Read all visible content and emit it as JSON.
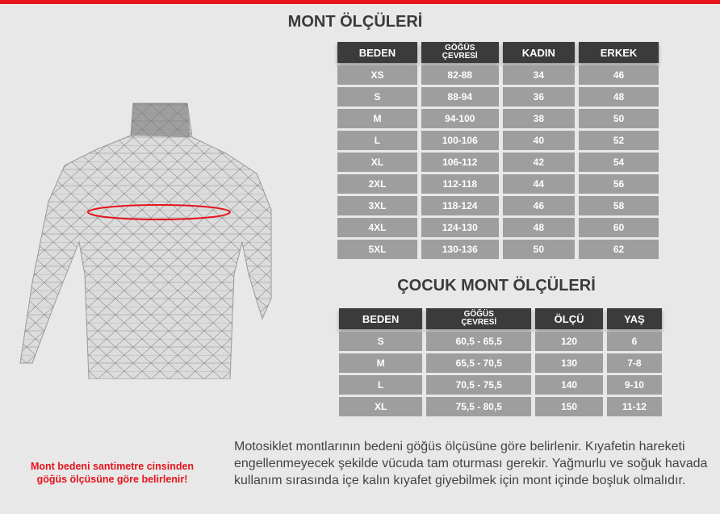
{
  "adult": {
    "title": "MONT ÖLÇÜLERİ",
    "headers": [
      "BEDEN",
      "GÖĞÜS",
      "ÇEVRESİ",
      "KADIN",
      "ERKEK"
    ],
    "rows": [
      [
        "XS",
        "82-88",
        "34",
        "46"
      ],
      [
        "S",
        "88-94",
        "36",
        "48"
      ],
      [
        "M",
        "94-100",
        "38",
        "50"
      ],
      [
        "L",
        "100-106",
        "40",
        "52"
      ],
      [
        "XL",
        "106-112",
        "42",
        "54"
      ],
      [
        "2XL",
        "112-118",
        "44",
        "56"
      ],
      [
        "3XL",
        "118-124",
        "46",
        "58"
      ],
      [
        "4XL",
        "124-130",
        "48",
        "60"
      ],
      [
        "5XL",
        "130-136",
        "50",
        "62"
      ]
    ]
  },
  "child": {
    "title": "ÇOCUK MONT ÖLÇÜLERİ",
    "headers": [
      "BEDEN",
      "GÖĞÜS",
      "ÇEVRESİ",
      "ÖLÇÜ",
      "YAŞ"
    ],
    "rows": [
      [
        "S",
        "60,5 - 65,5",
        "120",
        "6"
      ],
      [
        "M",
        "65,5 - 70,5",
        "130",
        "7-8"
      ],
      [
        "L",
        "70,5 - 75,5",
        "140",
        "9-10"
      ],
      [
        "XL",
        "75,5 - 80,5",
        "150",
        "11-12"
      ]
    ]
  },
  "note": "Mont bedeni santimetre cinsinden göğüs ölçüsüne göre belirlenir!",
  "description": "Motosiklet montlarının bedeni göğüs ölçüsüne göre belirlenir. Kıyafetin hareketi engellenmeyecek şekilde vücuda tam oturması gerekir. Yağmurlu ve soğuk havada kullanım sırasında içe kalın kıyafet giyebilmek için mont içinde boşluk olmalıdır.",
  "colors": {
    "accent": "#e4141b",
    "header": "#3b3b3b",
    "cell": "#9e9e9e"
  }
}
